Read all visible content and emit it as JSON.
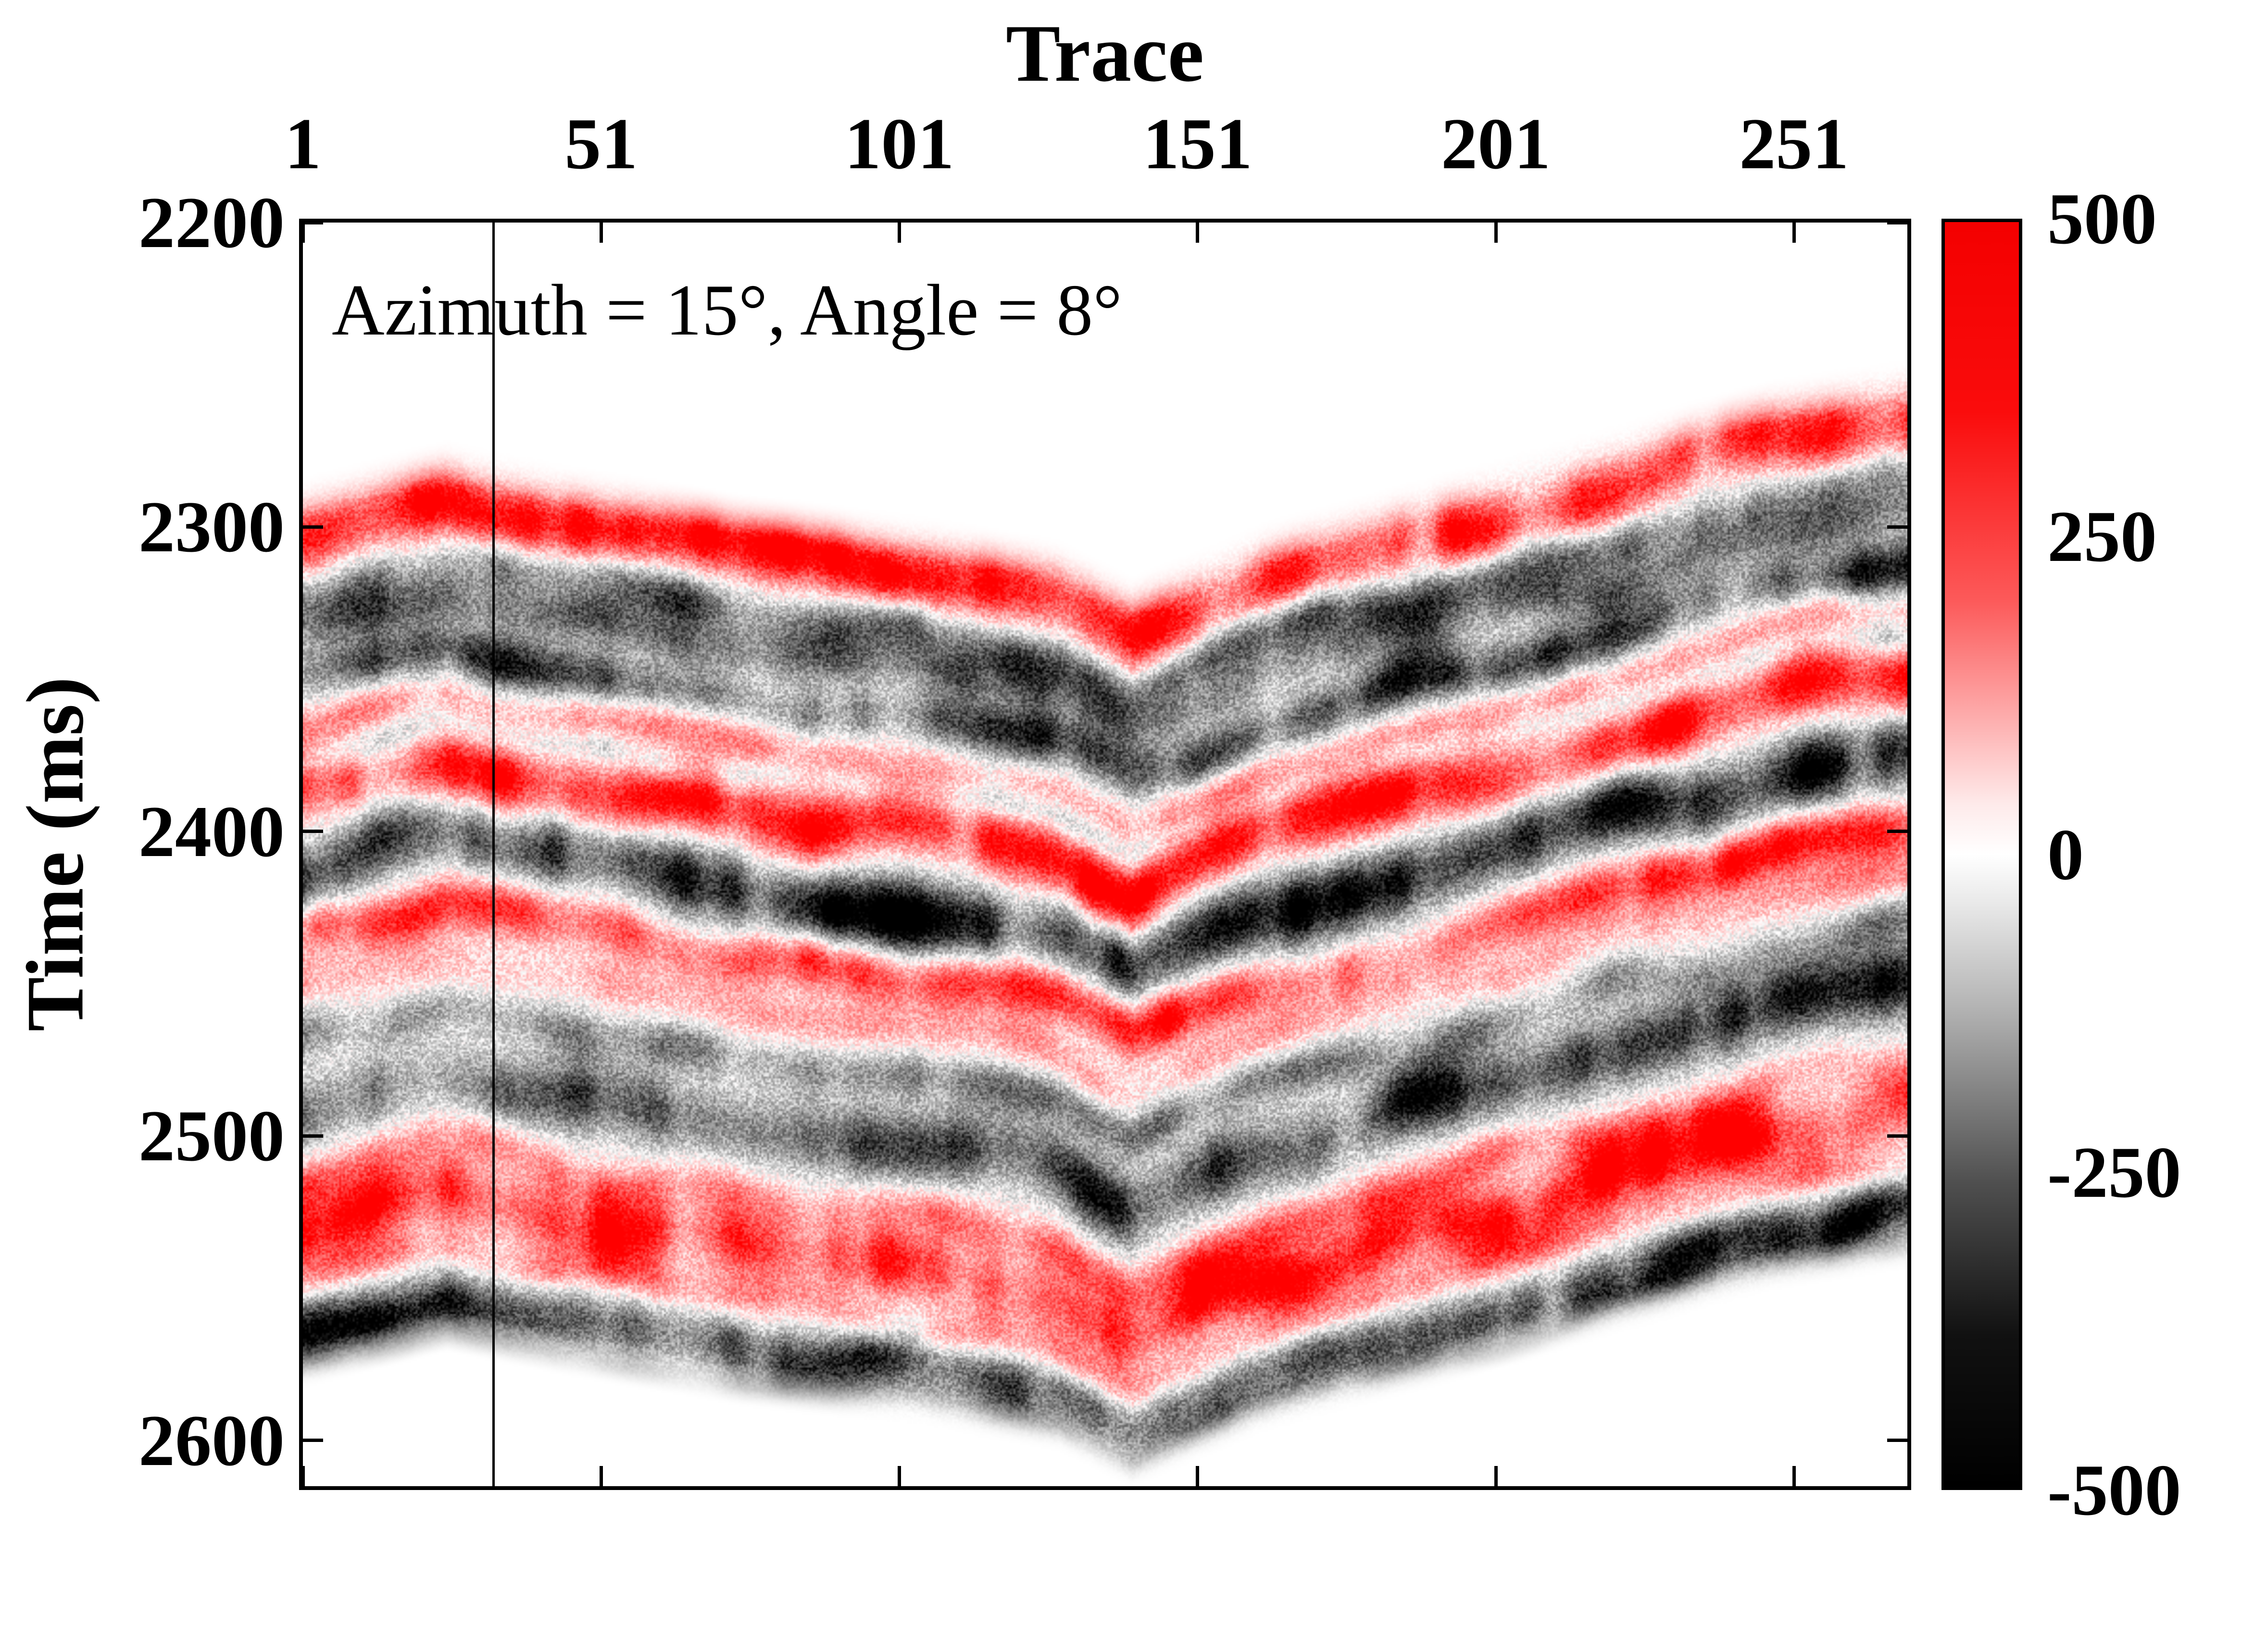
{
  "figure": {
    "x_axis": {
      "label": "Trace",
      "ticks": [
        "1",
        "51",
        "101",
        "151",
        "201",
        "251"
      ],
      "tick_values": [
        1,
        51,
        101,
        151,
        201,
        251
      ],
      "range": [
        1,
        270
      ]
    },
    "y_axis": {
      "label": "Time (ms)",
      "ticks": [
        "2200",
        "2300",
        "2400",
        "2500",
        "2600"
      ],
      "tick_values": [
        2200,
        2300,
        2400,
        2500,
        2600
      ],
      "range": [
        2200,
        2615
      ]
    },
    "annotation": "Azimuth = 15°, Angle = 8°",
    "colorbar": {
      "tick_labels": [
        "500",
        "250",
        "0",
        "-250",
        "-500"
      ],
      "tick_values": [
        500,
        250,
        0,
        -250,
        -500
      ],
      "vmax": 500,
      "vmin": -500,
      "positive_color": "#ff0000",
      "zero_color": "#ffffff",
      "negative_color": "#000000"
    },
    "marker_line": {
      "trace": 33
    }
  },
  "chart_data": {
    "type": "heatmap",
    "title": "",
    "xlabel": "Trace",
    "ylabel": "Time (ms)",
    "x_range": [
      1,
      270
    ],
    "y_range": [
      2200,
      2615
    ],
    "amplitude_range": [
      -500,
      500
    ],
    "annotation": "Azimuth = 15°, Angle = 8°",
    "legend_position": "colorbar-right",
    "grid": false,
    "horizon_ms": [
      [
        1,
        2295
      ],
      [
        25,
        2283
      ],
      [
        45,
        2291
      ],
      [
        75,
        2301
      ],
      [
        105,
        2308
      ],
      [
        128,
        2316
      ],
      [
        140,
        2328
      ],
      [
        162,
        2310
      ],
      [
        192,
        2294
      ],
      [
        222,
        2277
      ],
      [
        248,
        2263
      ],
      [
        270,
        2256
      ]
    ],
    "band_extent_ms": [
      -12,
      288
    ],
    "layers": [
      {
        "dt": 8,
        "amp": 500,
        "w": 11
      },
      {
        "dt": 26,
        "amp": -330,
        "w": 9
      },
      {
        "dt": 40,
        "amp": -250,
        "w": 8
      },
      {
        "dt": 56,
        "amp": -380,
        "w": 9
      },
      {
        "dt": 70,
        "amp": 230,
        "w": 8
      },
      {
        "dt": 80,
        "amp": -180,
        "w": 6
      },
      {
        "dt": 92,
        "amp": 500,
        "w": 11
      },
      {
        "dt": 118,
        "amp": -500,
        "w": 12
      },
      {
        "dt": 140,
        "amp": 450,
        "w": 9
      },
      {
        "dt": 158,
        "amp": 180,
        "w": 8
      },
      {
        "dt": 175,
        "amp": -230,
        "w": 8
      },
      {
        "dt": 195,
        "amp": -430,
        "w": 12
      },
      {
        "dt": 220,
        "amp": 250,
        "w": 8
      },
      {
        "dt": 237,
        "amp": 480,
        "w": 12
      },
      {
        "dt": 255,
        "amp": 200,
        "w": 7
      },
      {
        "dt": 268,
        "amp": -450,
        "w": 10
      },
      {
        "dt": 281,
        "amp": -150,
        "w": 5
      }
    ]
  }
}
